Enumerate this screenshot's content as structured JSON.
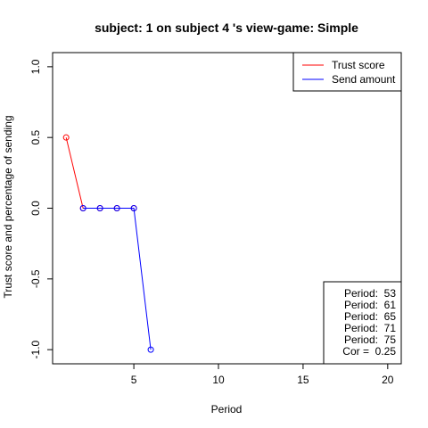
{
  "chart_data": {
    "type": "line",
    "title": "subject:  1  on subject  4 's view-game:  Simple",
    "xlabel": "Period",
    "ylabel": "Trust score and percentage of sending",
    "xlim": [
      0.2,
      20.8
    ],
    "ylim": [
      -1.1,
      1.1
    ],
    "xticks": [
      5,
      10,
      15,
      20
    ],
    "yticks": [
      -1.0,
      -0.5,
      0.0,
      0.5,
      1.0
    ],
    "xtick_labels": [
      "5",
      "10",
      "15",
      "20"
    ],
    "ytick_labels": [
      "-1.0",
      "-0.5",
      "0.0",
      "0.5",
      "1.0"
    ],
    "series": [
      {
        "name": "Trust score",
        "color": "#ff0000",
        "x": [
          1,
          2,
          3,
          4,
          5
        ],
        "y": [
          0.5,
          0,
          0,
          0,
          0
        ]
      },
      {
        "name": "Send amount",
        "color": "#0000ff",
        "x": [
          2,
          3,
          4,
          5,
          6
        ],
        "y": [
          0,
          0,
          0,
          0,
          -1
        ]
      }
    ],
    "legend_position": "top-right",
    "info_box": {
      "position": "bottom-right",
      "lines": [
        "Period:  53",
        "Period:  61",
        "Period:  65",
        "Period:  71",
        "Period:  75",
        "Cor =  0.25"
      ]
    },
    "grid": false
  }
}
